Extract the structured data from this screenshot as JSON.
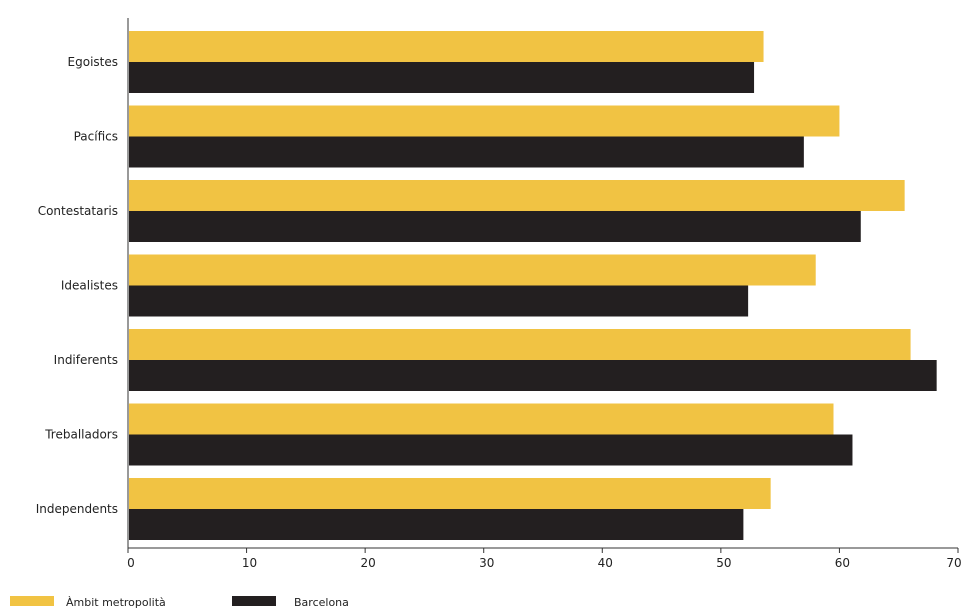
{
  "chart_data": {
    "type": "bar",
    "orientation": "horizontal",
    "categories": [
      "Egoistes",
      "Pacífics",
      "Contestataris",
      "Idealistes",
      "Indiferents",
      "Treballadors",
      "Independents"
    ],
    "series": [
      {
        "name": "Àmbit metropolità",
        "color": "#f1c343",
        "values": [
          53.6,
          60.0,
          65.5,
          58.0,
          66.0,
          59.5,
          54.2
        ]
      },
      {
        "name": "Barcelona",
        "color": "#231f20",
        "values": [
          52.8,
          57.0,
          61.8,
          52.3,
          68.2,
          61.1,
          51.9
        ]
      }
    ],
    "xlim": [
      0,
      70
    ],
    "xticks": [
      0,
      10,
      20,
      30,
      40,
      50,
      60,
      70
    ],
    "grid": false,
    "legend_position": "bottom-left"
  }
}
